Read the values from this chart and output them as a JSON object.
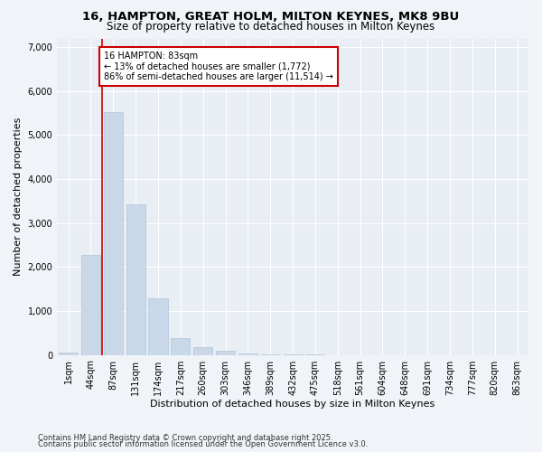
{
  "title1": "16, HAMPTON, GREAT HOLM, MILTON KEYNES, MK8 9BU",
  "title2": "Size of property relative to detached houses in Milton Keynes",
  "xlabel": "Distribution of detached houses by size in Milton Keynes",
  "ylabel": "Number of detached properties",
  "categories": [
    "1sqm",
    "44sqm",
    "87sqm",
    "131sqm",
    "174sqm",
    "217sqm",
    "260sqm",
    "303sqm",
    "346sqm",
    "389sqm",
    "432sqm",
    "475sqm",
    "518sqm",
    "561sqm",
    "604sqm",
    "648sqm",
    "691sqm",
    "734sqm",
    "777sqm",
    "820sqm",
    "863sqm"
  ],
  "values": [
    50,
    2280,
    5520,
    3420,
    1280,
    380,
    180,
    90,
    30,
    10,
    5,
    2,
    0,
    0,
    0,
    0,
    0,
    0,
    0,
    0,
    0
  ],
  "bar_color": "#c8d8e8",
  "bar_edge_color": "#b0c4d8",
  "vline_color": "#cc0000",
  "annotation_text": "16 HAMPTON: 83sqm\n← 13% of detached houses are smaller (1,772)\n86% of semi-detached houses are larger (11,514) →",
  "annotation_box_color": "#ffffff",
  "annotation_box_edge_color": "#cc0000",
  "ylim": [
    0,
    7200
  ],
  "yticks": [
    0,
    1000,
    2000,
    3000,
    4000,
    5000,
    6000,
    7000
  ],
  "footer1": "Contains HM Land Registry data © Crown copyright and database right 2025.",
  "footer2": "Contains public sector information licensed under the Open Government Licence v3.0.",
  "bg_color": "#f0f4f8",
  "plot_bg_color": "#e8eef4",
  "title_fontsize": 9.5,
  "subtitle_fontsize": 8.5,
  "axis_label_fontsize": 8,
  "tick_fontsize": 7,
  "footer_fontsize": 6
}
